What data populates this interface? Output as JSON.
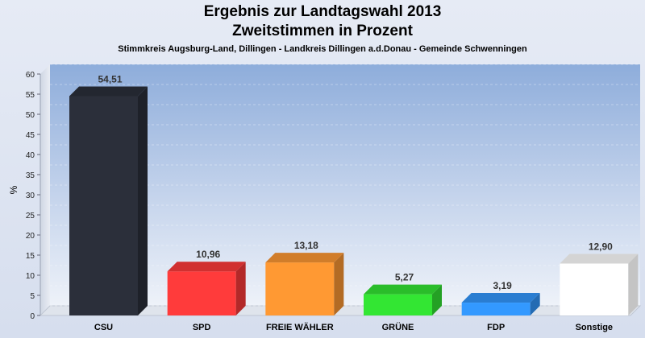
{
  "chart_data": {
    "type": "bar",
    "title": "Ergebnis zur Landtagswahl 2013",
    "title2": "Zweitstimmen in Prozent",
    "subtitle": "Stimmkreis Augsburg-Land, Dillingen - Landkreis Dillingen a.d.Donau - Gemeinde Schwenningen",
    "xlabel": "",
    "ylabel": "%",
    "ylim": [
      0,
      60
    ],
    "yticks": [
      0,
      5,
      10,
      15,
      20,
      25,
      30,
      35,
      40,
      45,
      50,
      55,
      60
    ],
    "categories": [
      "CSU",
      "SPD",
      "FREIE WÄHLER",
      "GRÜNE",
      "FDP",
      "Sonstige"
    ],
    "values": [
      54.51,
      10.96,
      13.18,
      5.27,
      3.19,
      12.9
    ],
    "value_labels": [
      "54,51",
      "10,96",
      "13,18",
      "5,27",
      "3,19",
      "12,90"
    ],
    "colors": [
      "#2b2f3a",
      "#ff3b3b",
      "#ff9933",
      "#33e633",
      "#3399ff",
      "#ffffff"
    ],
    "grid": true,
    "legend": "none"
  }
}
